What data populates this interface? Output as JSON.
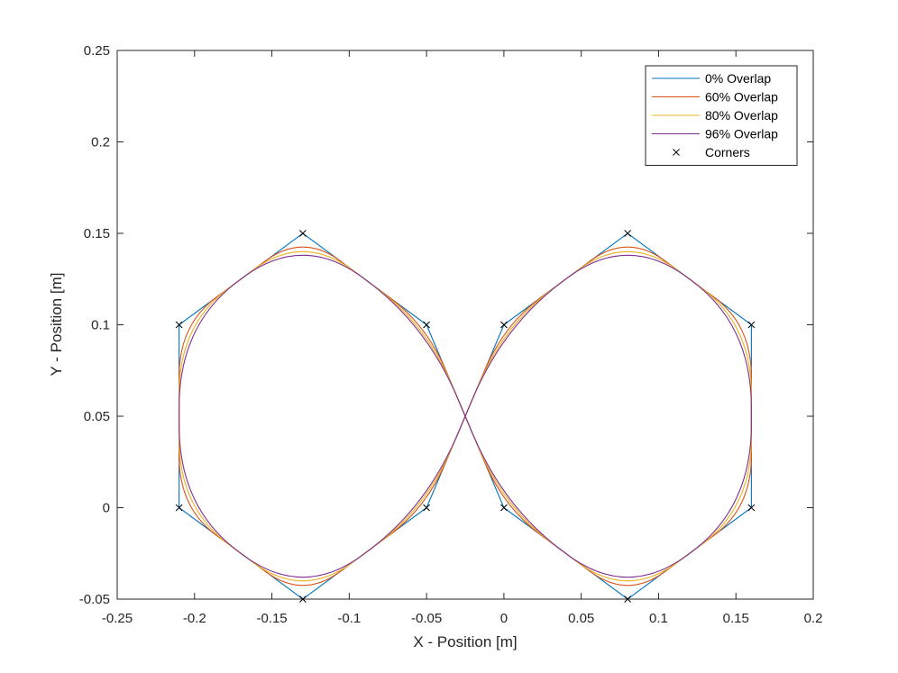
{
  "chart_data": {
    "type": "line",
    "title": "",
    "xlabel": "X - Position [m]",
    "ylabel": "Y - Position [m]",
    "xlim": [
      -0.25,
      0.2
    ],
    "ylim": [
      -0.05,
      0.25
    ],
    "xticks": [
      "-0.25",
      "-0.2",
      "-0.15",
      "-0.1",
      "-0.05",
      "0",
      "0.05",
      "0.1",
      "0.15",
      "0.2"
    ],
    "yticks": [
      "-0.05",
      "0",
      "0.05",
      "0.1",
      "0.15",
      "0.2",
      "0.25"
    ],
    "grid": false,
    "legend_position": "top-right",
    "path_corners": [
      [
        0,
        0
      ],
      [
        0.08,
        -0.05
      ],
      [
        0.16,
        0
      ],
      [
        0.16,
        0.1
      ],
      [
        0.08,
        0.15
      ],
      [
        0,
        0.1
      ],
      [
        -0.05,
        0
      ],
      [
        -0.13,
        -0.05
      ],
      [
        -0.21,
        0
      ],
      [
        -0.21,
        0.1
      ],
      [
        -0.13,
        0.15
      ],
      [
        -0.05,
        0.1
      ]
    ],
    "series": [
      {
        "name": "0% Overlap",
        "overlap": 0,
        "color": "#0072bd"
      },
      {
        "name": "60% Overlap",
        "overlap": 60,
        "color": "#d95319"
      },
      {
        "name": "80% Overlap",
        "overlap": 80,
        "color": "#edb120"
      },
      {
        "name": "96% Overlap",
        "overlap": 96,
        "color": "#7e2f8e"
      }
    ],
    "corners": {
      "name": "Corners",
      "marker": "x",
      "color": "#000000",
      "x": [
        -0.21,
        -0.13,
        -0.05,
        -0.21,
        -0.13,
        -0.05,
        0,
        0.08,
        0.16,
        0,
        0.08,
        0.16
      ],
      "y": [
        0.1,
        0.15,
        0.1,
        0,
        -0.05,
        0,
        0.1,
        0.15,
        0.1,
        0,
        -0.05,
        0
      ]
    }
  }
}
